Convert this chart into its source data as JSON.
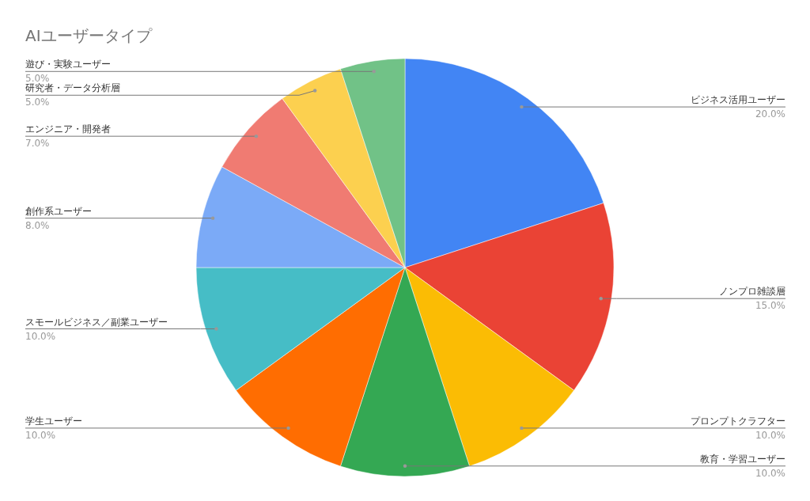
{
  "chart_data": {
    "type": "pie",
    "title": "AIユーザータイプ",
    "categories": [
      "ビジネス活用ユーザー",
      "ノンプロ雑談層",
      "プロンプトクラフター",
      "教育・学習ユーザー",
      "学生ユーザー",
      "スモールビジネス／副業ユーザー",
      "創作系ユーザー",
      "エンジニア・開発者",
      "研究者・データ分析層",
      "遊び・実験ユーザー"
    ],
    "values": [
      20,
      15,
      10,
      10,
      10,
      10,
      8,
      7,
      5,
      5
    ],
    "value_labels": [
      "20.0%",
      "15.0%",
      "10.0%",
      "10.0%",
      "10.0%",
      "10.0%",
      "8.0%",
      "7.0%",
      "5.0%",
      "5.0%"
    ],
    "colors": [
      "#4285f4",
      "#ea4335",
      "#fbbc04",
      "#34a853",
      "#ff6d01",
      "#46bdc6",
      "#7baaf7",
      "#f07b72",
      "#fcd04f",
      "#71c287"
    ]
  }
}
